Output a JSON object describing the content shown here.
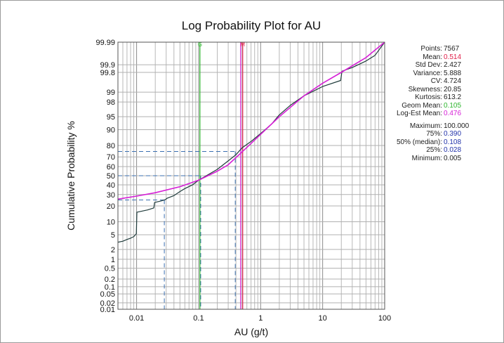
{
  "chart_data": {
    "type": "line",
    "title": "Log Probability Plot for AU",
    "xlabel": "AU (g/t)",
    "ylabel": "Cumulative Probability %",
    "x_scale": "log",
    "y_scale": "probability",
    "xlim": [
      0.005,
      100
    ],
    "ylim": [
      0.01,
      99.99
    ],
    "x_ticks": [
      {
        "value": 0.01,
        "label": "0.01"
      },
      {
        "value": 0.1,
        "label": "0.1"
      },
      {
        "value": 1,
        "label": "1"
      },
      {
        "value": 10,
        "label": "10"
      },
      {
        "value": 100,
        "label": "100"
      }
    ],
    "y_ticks": [
      {
        "value": 0.01,
        "label": "0.01"
      },
      {
        "value": 0.02,
        "label": "0.02"
      },
      {
        "value": 0.05,
        "label": "0.05"
      },
      {
        "value": 0.1,
        "label": "0.1"
      },
      {
        "value": 0.2,
        "label": "0.2"
      },
      {
        "value": 0.5,
        "label": "0.5"
      },
      {
        "value": 1,
        "label": "1"
      },
      {
        "value": 2,
        "label": "2"
      },
      {
        "value": 5,
        "label": "5"
      },
      {
        "value": 10,
        "label": "10"
      },
      {
        "value": 20,
        "label": "20"
      },
      {
        "value": 30,
        "label": "30"
      },
      {
        "value": 40,
        "label": "40"
      },
      {
        "value": 50,
        "label": "50"
      },
      {
        "value": 60,
        "label": "60"
      },
      {
        "value": 70,
        "label": "70"
      },
      {
        "value": 80,
        "label": "80"
      },
      {
        "value": 90,
        "label": "90"
      },
      {
        "value": 95,
        "label": "95"
      },
      {
        "value": 98,
        "label": "98"
      },
      {
        "value": 99,
        "label": "99"
      },
      {
        "value": 99.8,
        "label": "99.8"
      },
      {
        "value": 99.9,
        "label": "99.9"
      },
      {
        "value": 99.99,
        "label": "99.99"
      }
    ],
    "grid": true,
    "series": [
      {
        "type": "step",
        "color": "#1f3b3b",
        "points": [
          [
            0.005,
            3.2
          ],
          [
            0.006,
            3.4
          ],
          [
            0.007,
            3.8
          ],
          [
            0.008,
            4.1
          ],
          [
            0.009,
            4.5
          ],
          [
            0.0099,
            5.3
          ],
          [
            0.0101,
            15.5
          ],
          [
            0.015,
            17
          ],
          [
            0.019,
            18.5
          ],
          [
            0.0195,
            22.8
          ],
          [
            0.025,
            24.2
          ],
          [
            0.029,
            25.2
          ],
          [
            0.031,
            26.5
          ],
          [
            0.04,
            29
          ],
          [
            0.05,
            33
          ],
          [
            0.06,
            36
          ],
          [
            0.08,
            40
          ],
          [
            0.1,
            45
          ],
          [
            0.15,
            52
          ],
          [
            0.2,
            57
          ],
          [
            0.3,
            66
          ],
          [
            0.4,
            72
          ],
          [
            0.5,
            78
          ],
          [
            0.7,
            83
          ],
          [
            1.0,
            88
          ],
          [
            1.5,
            92.5
          ],
          [
            2.0,
            95.5
          ],
          [
            3.0,
            97.5
          ],
          [
            5.0,
            98.7
          ],
          [
            10.0,
            99.35
          ],
          [
            19.5,
            99.6
          ],
          [
            20.5,
            99.82
          ],
          [
            30.0,
            99.87
          ],
          [
            50.0,
            99.93
          ],
          [
            70.0,
            99.96
          ],
          [
            100.0,
            99.99
          ]
        ]
      },
      {
        "type": "fit",
        "color": "#d61fd6",
        "points": [
          [
            0.005,
            25.7
          ],
          [
            0.01,
            28.5
          ],
          [
            0.02,
            31.8
          ],
          [
            0.05,
            38
          ],
          [
            0.1,
            45
          ],
          [
            0.2,
            55
          ],
          [
            0.3,
            62
          ],
          [
            0.5,
            74.5
          ],
          [
            1.0,
            87.5
          ],
          [
            2.0,
            95
          ],
          [
            5.0,
            98.7
          ],
          [
            10.0,
            99.5
          ],
          [
            20.0,
            99.8
          ],
          [
            50.0,
            99.95
          ],
          [
            100.0,
            99.99
          ]
        ]
      }
    ],
    "vertical_markers": [
      {
        "value": 0.105,
        "color": "#2db52d",
        "label": "G"
      },
      {
        "value": 0.476,
        "color": "#d61fd6",
        "label": ""
      },
      {
        "value": 0.514,
        "color": "#e0204a",
        "label": "M"
      }
    ],
    "percentile_guides": [
      {
        "percent": 25,
        "value": 0.028,
        "color": "#3a6fb0"
      },
      {
        "percent": 50,
        "value": 0.108,
        "color": "#3a6fb0"
      },
      {
        "percent": 75,
        "value": 0.39,
        "color": "#3a6fb0"
      }
    ]
  },
  "stats": {
    "summary": [
      {
        "label": "Points:",
        "value": "7567",
        "color": "#222222"
      },
      {
        "label": "Mean:",
        "value": "0.514",
        "color": "#e0204a"
      },
      {
        "label": "Std Dev:",
        "value": "2.427",
        "color": "#222222"
      },
      {
        "label": "Variance:",
        "value": "5.888",
        "color": "#222222"
      },
      {
        "label": "CV:",
        "value": "4.724",
        "color": "#222222"
      },
      {
        "label": "Skewness:",
        "value": "20.85",
        "color": "#222222"
      },
      {
        "label": "Kurtosis:",
        "value": "613.2",
        "color": "#222222"
      },
      {
        "label": "Geom Mean:",
        "value": "0.105",
        "color": "#2db52d"
      },
      {
        "label": "Log-Est Mean:",
        "value": "0.476",
        "color": "#d61fd6"
      }
    ],
    "percentiles": [
      {
        "label": "Maximum:",
        "value": "100.000",
        "color": "#222222"
      },
      {
        "label": "75%:",
        "value": "0.390",
        "color": "#2233aa"
      },
      {
        "label": "50% (median):",
        "value": "0.108",
        "color": "#2233aa"
      },
      {
        "label": "25%:",
        "value": "0.028",
        "color": "#2233aa"
      },
      {
        "label": "Minimum:",
        "value": "0.005",
        "color": "#222222"
      }
    ]
  }
}
